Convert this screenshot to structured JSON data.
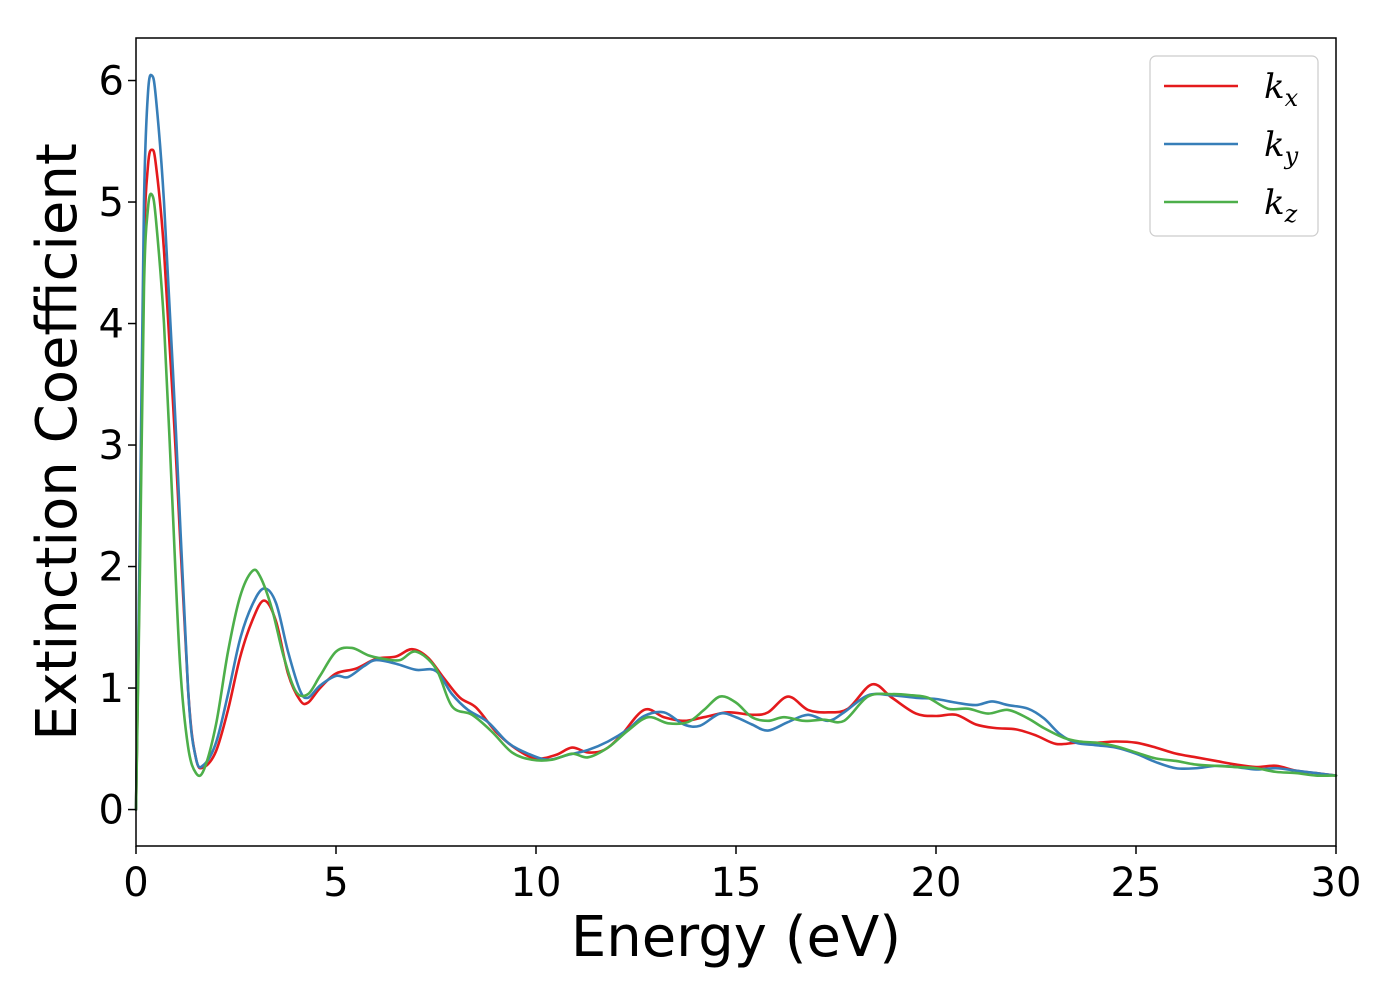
{
  "chart_data": {
    "type": "line",
    "xlabel": "Energy (eV)",
    "ylabel": "Extinction Coefficient",
    "xlim": [
      0,
      30
    ],
    "ylim": [
      -0.3,
      6.35
    ],
    "xticks": [
      0,
      5,
      10,
      15,
      20,
      25,
      30
    ],
    "yticks": [
      0,
      1,
      2,
      3,
      4,
      5,
      6
    ],
    "legend_position": "top-right",
    "grid": false,
    "series": [
      {
        "name": "k",
        "subscript": "x",
        "color": "#e41a1c",
        "points": [
          [
            0,
            0
          ],
          [
            0.1,
            2.2
          ],
          [
            0.2,
            4.6
          ],
          [
            0.3,
            5.3
          ],
          [
            0.4,
            5.43
          ],
          [
            0.5,
            5.3
          ],
          [
            0.7,
            4.6
          ],
          [
            1.0,
            2.9
          ],
          [
            1.3,
            1.0
          ],
          [
            1.5,
            0.42
          ],
          [
            1.7,
            0.35
          ],
          [
            2.0,
            0.48
          ],
          [
            2.3,
            0.82
          ],
          [
            2.6,
            1.25
          ],
          [
            2.9,
            1.55
          ],
          [
            3.2,
            1.72
          ],
          [
            3.5,
            1.55
          ],
          [
            3.8,
            1.12
          ],
          [
            4.1,
            0.9
          ],
          [
            4.3,
            0.88
          ],
          [
            4.6,
            1.0
          ],
          [
            5.0,
            1.12
          ],
          [
            5.5,
            1.16
          ],
          [
            6.0,
            1.24
          ],
          [
            6.5,
            1.26
          ],
          [
            6.9,
            1.32
          ],
          [
            7.3,
            1.25
          ],
          [
            7.7,
            1.08
          ],
          [
            8.1,
            0.92
          ],
          [
            8.5,
            0.84
          ],
          [
            9.0,
            0.64
          ],
          [
            9.5,
            0.5
          ],
          [
            10.0,
            0.42
          ],
          [
            10.5,
            0.45
          ],
          [
            10.9,
            0.51
          ],
          [
            11.3,
            0.47
          ],
          [
            11.7,
            0.49
          ],
          [
            12.1,
            0.6
          ],
          [
            12.7,
            0.82
          ],
          [
            13.2,
            0.76
          ],
          [
            13.7,
            0.73
          ],
          [
            14.2,
            0.76
          ],
          [
            14.8,
            0.8
          ],
          [
            15.4,
            0.78
          ],
          [
            15.8,
            0.8
          ],
          [
            16.3,
            0.93
          ],
          [
            16.8,
            0.82
          ],
          [
            17.3,
            0.8
          ],
          [
            17.8,
            0.83
          ],
          [
            18.4,
            1.03
          ],
          [
            18.9,
            0.92
          ],
          [
            19.5,
            0.79
          ],
          [
            20.0,
            0.77
          ],
          [
            20.5,
            0.78
          ],
          [
            21.0,
            0.7
          ],
          [
            21.5,
            0.67
          ],
          [
            22.0,
            0.66
          ],
          [
            22.5,
            0.61
          ],
          [
            23.0,
            0.54
          ],
          [
            23.5,
            0.55
          ],
          [
            24.0,
            0.55
          ],
          [
            24.5,
            0.56
          ],
          [
            25.0,
            0.55
          ],
          [
            25.5,
            0.51
          ],
          [
            26.0,
            0.46
          ],
          [
            26.5,
            0.43
          ],
          [
            27.0,
            0.4
          ],
          [
            27.5,
            0.37
          ],
          [
            28.0,
            0.35
          ],
          [
            28.5,
            0.36
          ],
          [
            29.0,
            0.32
          ],
          [
            29.5,
            0.3
          ],
          [
            30.0,
            0.28
          ]
        ]
      },
      {
        "name": "k",
        "subscript": "y",
        "color": "#377eb8",
        "points": [
          [
            0,
            0
          ],
          [
            0.1,
            2.4
          ],
          [
            0.2,
            5.0
          ],
          [
            0.3,
            5.9
          ],
          [
            0.4,
            6.04
          ],
          [
            0.5,
            5.85
          ],
          [
            0.7,
            5.0
          ],
          [
            1.0,
            3.1
          ],
          [
            1.3,
            1.0
          ],
          [
            1.5,
            0.42
          ],
          [
            1.7,
            0.37
          ],
          [
            2.0,
            0.55
          ],
          [
            2.3,
            0.95
          ],
          [
            2.6,
            1.4
          ],
          [
            2.9,
            1.68
          ],
          [
            3.2,
            1.82
          ],
          [
            3.5,
            1.7
          ],
          [
            3.8,
            1.3
          ],
          [
            4.1,
            0.98
          ],
          [
            4.3,
            0.92
          ],
          [
            4.6,
            1.02
          ],
          [
            5.0,
            1.1
          ],
          [
            5.3,
            1.09
          ],
          [
            5.7,
            1.18
          ],
          [
            6.0,
            1.23
          ],
          [
            6.5,
            1.2
          ],
          [
            7.0,
            1.15
          ],
          [
            7.5,
            1.14
          ],
          [
            7.9,
            0.95
          ],
          [
            8.3,
            0.82
          ],
          [
            8.8,
            0.72
          ],
          [
            9.3,
            0.55
          ],
          [
            9.8,
            0.46
          ],
          [
            10.3,
            0.41
          ],
          [
            10.8,
            0.45
          ],
          [
            11.3,
            0.49
          ],
          [
            11.8,
            0.56
          ],
          [
            12.3,
            0.66
          ],
          [
            12.7,
            0.77
          ],
          [
            13.2,
            0.8
          ],
          [
            13.7,
            0.7
          ],
          [
            14.1,
            0.69
          ],
          [
            14.6,
            0.79
          ],
          [
            15.0,
            0.76
          ],
          [
            15.4,
            0.7
          ],
          [
            15.8,
            0.65
          ],
          [
            16.3,
            0.72
          ],
          [
            16.8,
            0.78
          ],
          [
            17.3,
            0.73
          ],
          [
            17.7,
            0.8
          ],
          [
            18.3,
            0.94
          ],
          [
            18.9,
            0.94
          ],
          [
            19.5,
            0.92
          ],
          [
            20.0,
            0.91
          ],
          [
            20.5,
            0.88
          ],
          [
            21.0,
            0.86
          ],
          [
            21.4,
            0.89
          ],
          [
            21.8,
            0.86
          ],
          [
            22.3,
            0.83
          ],
          [
            22.7,
            0.75
          ],
          [
            23.1,
            0.62
          ],
          [
            23.5,
            0.55
          ],
          [
            24.0,
            0.53
          ],
          [
            24.5,
            0.51
          ],
          [
            25.0,
            0.46
          ],
          [
            25.5,
            0.39
          ],
          [
            26.0,
            0.34
          ],
          [
            26.5,
            0.34
          ],
          [
            27.0,
            0.36
          ],
          [
            27.5,
            0.35
          ],
          [
            28.0,
            0.33
          ],
          [
            28.5,
            0.34
          ],
          [
            29.0,
            0.32
          ],
          [
            29.5,
            0.3
          ],
          [
            30.0,
            0.28
          ]
        ]
      },
      {
        "name": "k",
        "subscript": "z",
        "color": "#4daf4a",
        "points": [
          [
            0,
            0
          ],
          [
            0.1,
            2.0
          ],
          [
            0.2,
            4.3
          ],
          [
            0.3,
            4.95
          ],
          [
            0.4,
            5.06
          ],
          [
            0.5,
            4.85
          ],
          [
            0.7,
            4.0
          ],
          [
            0.9,
            2.6
          ],
          [
            1.1,
            1.2
          ],
          [
            1.3,
            0.52
          ],
          [
            1.5,
            0.3
          ],
          [
            1.7,
            0.33
          ],
          [
            2.0,
            0.7
          ],
          [
            2.3,
            1.3
          ],
          [
            2.6,
            1.75
          ],
          [
            2.9,
            1.96
          ],
          [
            3.1,
            1.92
          ],
          [
            3.4,
            1.65
          ],
          [
            3.7,
            1.25
          ],
          [
            4.0,
            0.97
          ],
          [
            4.3,
            0.95
          ],
          [
            4.6,
            1.1
          ],
          [
            5.0,
            1.3
          ],
          [
            5.4,
            1.33
          ],
          [
            5.8,
            1.27
          ],
          [
            6.2,
            1.24
          ],
          [
            6.6,
            1.23
          ],
          [
            7.0,
            1.3
          ],
          [
            7.5,
            1.16
          ],
          [
            7.9,
            0.85
          ],
          [
            8.4,
            0.78
          ],
          [
            8.9,
            0.64
          ],
          [
            9.4,
            0.47
          ],
          [
            9.9,
            0.41
          ],
          [
            10.4,
            0.41
          ],
          [
            10.9,
            0.46
          ],
          [
            11.3,
            0.43
          ],
          [
            11.8,
            0.51
          ],
          [
            12.3,
            0.65
          ],
          [
            12.8,
            0.76
          ],
          [
            13.3,
            0.71
          ],
          [
            13.8,
            0.72
          ],
          [
            14.2,
            0.82
          ],
          [
            14.6,
            0.93
          ],
          [
            15.0,
            0.88
          ],
          [
            15.4,
            0.76
          ],
          [
            15.8,
            0.73
          ],
          [
            16.2,
            0.76
          ],
          [
            16.7,
            0.73
          ],
          [
            17.2,
            0.74
          ],
          [
            17.7,
            0.73
          ],
          [
            18.3,
            0.93
          ],
          [
            18.9,
            0.95
          ],
          [
            19.4,
            0.94
          ],
          [
            19.8,
            0.92
          ],
          [
            20.3,
            0.83
          ],
          [
            20.8,
            0.83
          ],
          [
            21.3,
            0.79
          ],
          [
            21.8,
            0.82
          ],
          [
            22.3,
            0.75
          ],
          [
            22.7,
            0.67
          ],
          [
            23.2,
            0.59
          ],
          [
            23.6,
            0.56
          ],
          [
            24.0,
            0.55
          ],
          [
            24.5,
            0.52
          ],
          [
            25.0,
            0.47
          ],
          [
            25.5,
            0.42
          ],
          [
            26.0,
            0.4
          ],
          [
            26.5,
            0.37
          ],
          [
            27.0,
            0.36
          ],
          [
            27.5,
            0.35
          ],
          [
            28.0,
            0.34
          ],
          [
            28.5,
            0.31
          ],
          [
            29.0,
            0.3
          ],
          [
            29.5,
            0.28
          ],
          [
            30.0,
            0.28
          ]
        ]
      }
    ]
  }
}
